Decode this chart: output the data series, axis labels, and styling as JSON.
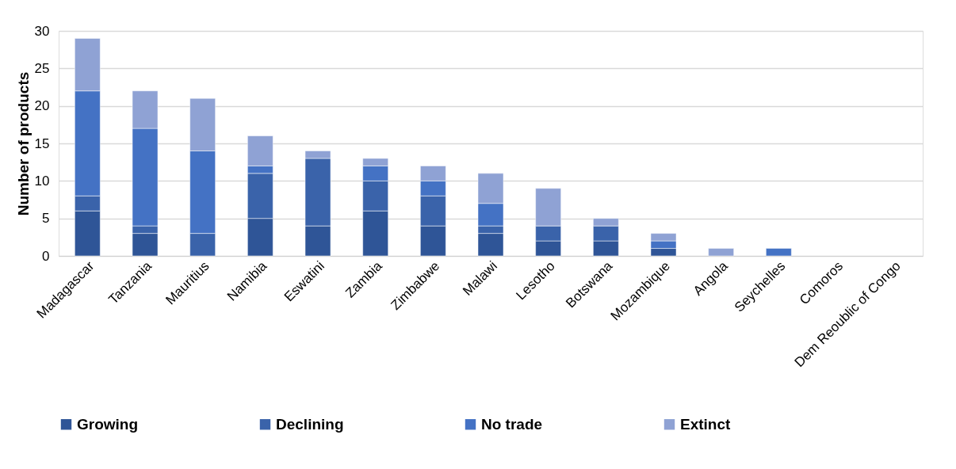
{
  "chart_data": {
    "type": "bar",
    "stacked": true,
    "ylabel": "Number of products",
    "categories": [
      "Madagascar",
      "Tanzania",
      "Mauritius",
      "Namibia",
      "Eswatini",
      "Zambia",
      "Zimbabwe",
      "Malawi",
      "Lesotho",
      "Botswana",
      "Mozambique",
      "Angola",
      "Seychelles",
      "Comoros",
      "Dem Reoublic of Congo"
    ],
    "series": [
      {
        "name": "Growing",
        "color": "#2f5597",
        "values": [
          6,
          3,
          0,
          5,
          4,
          6,
          4,
          3,
          2,
          2,
          1,
          0,
          0,
          0,
          0
        ]
      },
      {
        "name": "Declining",
        "color": "#3a63aa",
        "values": [
          2,
          1,
          3,
          6,
          9,
          4,
          4,
          1,
          2,
          2,
          0,
          0,
          0,
          0,
          0
        ]
      },
      {
        "name": "No trade",
        "color": "#4472c4",
        "values": [
          14,
          13,
          11,
          1,
          0,
          2,
          2,
          3,
          0,
          0,
          1,
          0,
          1,
          0,
          0
        ]
      },
      {
        "name": "Extinct",
        "color": "#8fa2d4",
        "values": [
          7,
          5,
          7,
          4,
          1,
          1,
          2,
          4,
          5,
          1,
          1,
          1,
          0,
          0,
          0
        ]
      }
    ],
    "ylim": [
      0,
      30
    ],
    "yticks": [
      0,
      5,
      10,
      15,
      20,
      25,
      30
    ],
    "grid": "y",
    "legend": "bottom"
  }
}
